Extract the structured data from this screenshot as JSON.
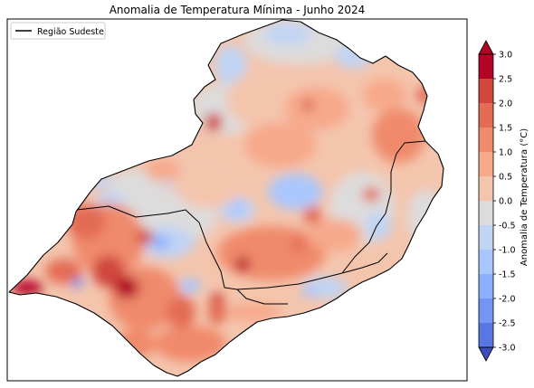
{
  "figure": {
    "title": "Anomalia de Temperatura Mínima - Junho 2024"
  },
  "legend": {
    "entries": [
      {
        "label": "Região Sudeste",
        "line_color": "#000000"
      }
    ]
  },
  "colorbar": {
    "label": "Anomalia de Temperatura (°C)",
    "ticks": [
      "3.0",
      "2.5",
      "2.0",
      "1.5",
      "1.0",
      "0.5",
      "0.0",
      "-0.5",
      "-1.0",
      "-1.5",
      "-2.0",
      "-2.5",
      "-3.0"
    ],
    "levels": [
      3.0,
      2.5,
      2.0,
      1.5,
      1.0,
      0.5,
      0.0,
      -0.5,
      -1.0,
      -1.5,
      -2.0,
      -2.5,
      -3.0
    ],
    "colors": [
      "#b40426",
      "#d0473d",
      "#e36c55",
      "#f08a6c",
      "#f7a98b",
      "#f4c5ad",
      "#dddcdc",
      "#c1d4f4",
      "#aac7fd",
      "#8db0fe",
      "#7396f5",
      "#5977e3"
    ],
    "extend_over_color": "#b40426",
    "extend_under_color": "#3b4cc0"
  },
  "map": {
    "region": "Região Sudeste",
    "base_color": "#f4c5ad",
    "dominant_anomaly": "positive"
  }
}
